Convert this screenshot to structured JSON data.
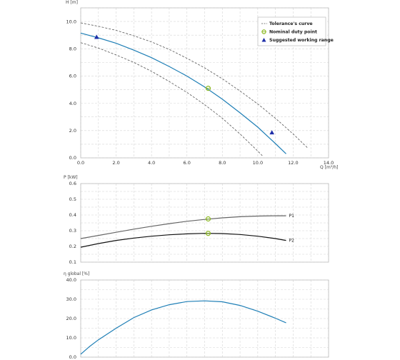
{
  "chart_data": [
    {
      "type": "line",
      "ylabel": "H [m]",
      "xlabel": "Q [m³/h]",
      "xlim": [
        0,
        14
      ],
      "ylim": [
        0,
        11
      ],
      "x_ticks": [
        "0.0",
        "2.0",
        "4.0",
        "6.0",
        "8.0",
        "10.0",
        "12.0",
        "14.0"
      ],
      "y_ticks": [
        "0.0",
        "2.0",
        "4.0",
        "6.0",
        "8.0",
        "10.0"
      ],
      "grid": true,
      "legend_position": "top-right",
      "legend": {
        "tolerance": "Tolerance's curve",
        "nominal": "Nominal duty point",
        "suggested": "Suggested working range"
      },
      "series": [
        {
          "name": "Tolerance's curve",
          "style": "dashed",
          "color": "#555555",
          "x": [
            0,
            1,
            2,
            3,
            4,
            5,
            6,
            7,
            8,
            9,
            10,
            11,
            12,
            12.8
          ],
          "y": [
            9.9,
            9.65,
            9.35,
            8.95,
            8.5,
            7.95,
            7.3,
            6.6,
            5.8,
            4.9,
            3.95,
            2.9,
            1.75,
            0.75
          ]
        },
        {
          "name": "",
          "color": "#1f7fb6",
          "x": [
            0,
            1,
            2,
            3,
            4,
            5,
            6,
            7,
            8,
            9,
            10,
            11,
            11.6
          ],
          "y": [
            9.15,
            8.8,
            8.4,
            7.9,
            7.35,
            6.7,
            6.0,
            5.2,
            4.3,
            3.3,
            2.25,
            1.05,
            0.3
          ]
        },
        {
          "name": "",
          "style": "dashed",
          "color": "#555555",
          "x": [
            0,
            1,
            2,
            3,
            4,
            5,
            6,
            7,
            8,
            9,
            10,
            10.3
          ],
          "y": [
            8.45,
            8.05,
            7.55,
            7.0,
            6.35,
            5.6,
            4.8,
            3.9,
            2.9,
            1.75,
            0.5,
            0.1
          ]
        }
      ],
      "nominal_point": {
        "x": 7.2,
        "y": 5.1
      },
      "suggested_range": [
        {
          "x": 0.9,
          "y": 8.85
        },
        {
          "x": 10.8,
          "y": 1.85
        }
      ],
      "colors": {
        "nominal": "#8ab81f",
        "suggested": "#1e2ea8"
      }
    },
    {
      "type": "line",
      "ylabel": "P [kW]",
      "xlim": [
        0,
        14
      ],
      "ylim": [
        0.1,
        0.6
      ],
      "y_ticks": [
        "0.1",
        "0.2",
        "0.3",
        "0.4",
        "0.5",
        "0.6"
      ],
      "grid": true,
      "series": [
        {
          "name": "P1",
          "color": "#666666",
          "x": [
            0,
            1,
            2,
            3,
            4,
            5,
            6,
            7,
            8,
            9,
            10,
            11,
            11.6
          ],
          "y": [
            0.25,
            0.27,
            0.29,
            0.31,
            0.328,
            0.345,
            0.36,
            0.372,
            0.382,
            0.389,
            0.393,
            0.395,
            0.395
          ]
        },
        {
          "name": "P2",
          "color": "#111111",
          "x": [
            0,
            1,
            2,
            3,
            4,
            5,
            6,
            7,
            8,
            9,
            10,
            11,
            11.6
          ],
          "y": [
            0.195,
            0.218,
            0.238,
            0.253,
            0.265,
            0.274,
            0.28,
            0.283,
            0.282,
            0.276,
            0.265,
            0.25,
            0.238
          ]
        }
      ],
      "nominal_points": [
        {
          "x": 7.2,
          "y": 0.375
        },
        {
          "x": 7.2,
          "y": 0.283
        }
      ],
      "colors": {
        "nominal": "#8ab81f"
      }
    },
    {
      "type": "line",
      "ylabel": "η global [%]",
      "xlim": [
        0,
        14
      ],
      "ylim": [
        0,
        40
      ],
      "y_ticks": [
        "0.0",
        "10.0",
        "20.0",
        "30.0",
        "40.0"
      ],
      "grid": true,
      "series": [
        {
          "name": "",
          "color": "#1f7fb6",
          "x": [
            0,
            0.5,
            1,
            2,
            3,
            4,
            5,
            6,
            7,
            8,
            9,
            10,
            11,
            11.6
          ],
          "y": [
            1.5,
            5.5,
            9,
            15,
            20.5,
            24.5,
            27.2,
            28.8,
            29.2,
            28.7,
            26.8,
            23.8,
            20.2,
            17.8
          ]
        }
      ]
    }
  ]
}
